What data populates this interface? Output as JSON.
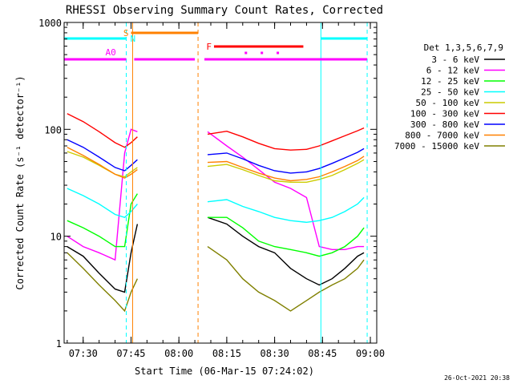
{
  "chart_data": {
    "type": "line",
    "title": "RHESSI Observing Summary Count Rates, Corrected",
    "xlabel": "Start Time (06-Mar-15 07:24:02)",
    "ylabel": "Corrected Count Rate (s⁻¹ detector⁻¹)",
    "y_scale": "log",
    "ylim": [
      1,
      1000
    ],
    "xlim": [
      "07:24:02",
      "09:02:00"
    ],
    "x_ticks": [
      "07:30",
      "07:45",
      "08:00",
      "08:15",
      "08:30",
      "08:45",
      "09:00"
    ],
    "y_ticks": [
      "1",
      "10",
      "100",
      "1000"
    ],
    "legend_header": "Det 1,3,5,6,7,9",
    "legend_position": "right",
    "grid": false,
    "series": [
      {
        "name": "3 - 6 keV",
        "color": "#000000",
        "x": [
          "07:25",
          "07:30",
          "07:35",
          "07:40",
          "07:43",
          "07:45",
          "07:47",
          "08:09",
          "08:15",
          "08:20",
          "08:25",
          "08:30",
          "08:35",
          "08:40",
          "08:44",
          "08:48",
          "08:52",
          "08:56",
          "08:58"
        ],
        "y": [
          8,
          6.5,
          4.5,
          3.2,
          3,
          7,
          13,
          15,
          13,
          10,
          8,
          7,
          5,
          4,
          3.5,
          4,
          5,
          6.5,
          7
        ]
      },
      {
        "name": "6 - 12 keV",
        "color": "#ff00ff",
        "x": [
          "07:25",
          "07:30",
          "07:35",
          "07:40",
          "07:43",
          "07:45",
          "07:47",
          "08:09",
          "08:15",
          "08:20",
          "08:25",
          "08:30",
          "08:35",
          "08:40",
          "08:44",
          "08:48",
          "08:52",
          "08:56",
          "08:58"
        ],
        "y": [
          10,
          8,
          7,
          6,
          60,
          100,
          95,
          95,
          70,
          55,
          42,
          32,
          28,
          23,
          8,
          7.5,
          7.5,
          8,
          8
        ]
      },
      {
        "name": "12 - 25 keV",
        "color": "#00ff00",
        "x": [
          "07:25",
          "07:30",
          "07:35",
          "07:40",
          "07:43",
          "07:45",
          "07:47",
          "08:09",
          "08:15",
          "08:20",
          "08:25",
          "08:30",
          "08:35",
          "08:40",
          "08:44",
          "08:48",
          "08:52",
          "08:56",
          "08:58"
        ],
        "y": [
          14,
          12,
          10,
          8,
          8,
          20,
          25,
          15,
          15,
          12,
          9,
          8,
          7.5,
          7,
          6.5,
          7,
          8,
          10,
          12
        ]
      },
      {
        "name": "25 - 50 keV",
        "color": "#00ffff",
        "x": [
          "07:25",
          "07:30",
          "07:35",
          "07:40",
          "07:43",
          "07:45",
          "07:47",
          "08:09",
          "08:15",
          "08:20",
          "08:25",
          "08:30",
          "08:35",
          "08:40",
          "08:44",
          "08:48",
          "08:52",
          "08:56",
          "08:58"
        ],
        "y": [
          28,
          24,
          20,
          16,
          15,
          17,
          20,
          21,
          22,
          19,
          17,
          15,
          14,
          13.5,
          14,
          15,
          17,
          20,
          23
        ]
      },
      {
        "name": "50 - 100 keV",
        "color": "#cccc00",
        "x": [
          "07:25",
          "07:30",
          "07:35",
          "07:40",
          "07:43",
          "07:45",
          "07:47",
          "08:09",
          "08:15",
          "08:20",
          "08:25",
          "08:30",
          "08:35",
          "08:40",
          "08:44",
          "08:48",
          "08:52",
          "08:56",
          "08:58"
        ],
        "y": [
          62,
          55,
          46,
          38,
          36,
          40,
          44,
          45,
          47,
          42,
          37,
          33,
          32,
          32,
          34,
          37,
          42,
          48,
          52
        ]
      },
      {
        "name": "100 - 300 keV",
        "color": "#ff0000",
        "x": [
          "07:25",
          "07:30",
          "07:35",
          "07:40",
          "07:43",
          "07:45",
          "07:47",
          "08:09",
          "08:15",
          "08:20",
          "08:25",
          "08:30",
          "08:35",
          "08:40",
          "08:44",
          "08:48",
          "08:52",
          "08:56",
          "08:58"
        ],
        "y": [
          140,
          118,
          95,
          75,
          68,
          75,
          85,
          90,
          96,
          85,
          74,
          66,
          64,
          65,
          70,
          78,
          87,
          97,
          103
        ]
      },
      {
        "name": "300 - 800 keV",
        "color": "#0000ff",
        "x": [
          "07:25",
          "07:30",
          "07:35",
          "07:40",
          "07:43",
          "07:45",
          "07:47",
          "08:09",
          "08:15",
          "08:20",
          "08:25",
          "08:30",
          "08:35",
          "08:40",
          "08:44",
          "08:48",
          "08:52",
          "08:56",
          "08:58"
        ],
        "y": [
          80,
          68,
          55,
          44,
          41,
          46,
          52,
          58,
          60,
          53,
          46,
          41,
          39,
          40,
          43,
          48,
          54,
          61,
          66
        ]
      },
      {
        "name": "800 - 7000 keV",
        "color": "#ff8000",
        "x": [
          "07:25",
          "07:30",
          "07:35",
          "07:40",
          "07:43",
          "07:45",
          "07:47",
          "08:09",
          "08:15",
          "08:20",
          "08:25",
          "08:30",
          "08:35",
          "08:40",
          "08:44",
          "08:48",
          "08:52",
          "08:56",
          "08:58"
        ],
        "y": [
          68,
          57,
          47,
          38,
          35,
          38,
          42,
          49,
          50,
          44,
          39,
          35,
          33,
          34,
          36,
          40,
          45,
          51,
          56
        ]
      },
      {
        "name": "7000 - 15000 keV",
        "color": "#808000",
        "x": [
          "07:25",
          "07:30",
          "07:35",
          "07:40",
          "07:43",
          "07:45",
          "07:47",
          "08:09",
          "08:15",
          "08:20",
          "08:25",
          "08:30",
          "08:35",
          "08:40",
          "08:44",
          "08:48",
          "08:52",
          "08:56",
          "08:58"
        ],
        "y": [
          7,
          5,
          3.5,
          2.5,
          2,
          3,
          4,
          8,
          6,
          4,
          3,
          2.5,
          2,
          2.5,
          3,
          3.5,
          4,
          5,
          6
        ]
      }
    ],
    "vertical_markers": [
      {
        "x": "07:43:30",
        "color": "#00ffff",
        "style": "dashed"
      },
      {
        "x": "07:45:30",
        "color": "#ff8000",
        "style": "solid"
      },
      {
        "x": "08:06:00",
        "color": "#ff8000",
        "style": "dashed"
      },
      {
        "x": "08:44:30",
        "color": "#00ffff",
        "style": "solid"
      },
      {
        "x": "08:59:00",
        "color": "#00ffff",
        "style": "dashed"
      }
    ],
    "state_bars": [
      {
        "label": "S",
        "color": "#ff8000",
        "level": 1,
        "x0": "07:45:00",
        "x1": "08:06:00",
        "label_side": "left"
      },
      {
        "label": "N",
        "color": "#00ffff",
        "level": 2,
        "x0": "07:24:02",
        "x1": "07:43:30",
        "label_side": "right"
      },
      {
        "label": "N",
        "color": "#00ffff",
        "level": 2,
        "x0": "08:44:30",
        "x1": "08:59:00",
        "label_side": "none"
      },
      {
        "label": "F",
        "color": "#ff0000",
        "level": 3,
        "x0": "08:11:00",
        "x1": "08:39:00",
        "label_side": "left"
      },
      {
        "label": "A0",
        "color": "#ff00ff",
        "level": 4,
        "x0": "07:24:02",
        "x1": "07:43:30",
        "label_side": "above"
      },
      {
        "label": "",
        "color": "#ff00ff",
        "level": 4,
        "x0": "07:46:00",
        "x1": "08:05:00",
        "label_side": "none"
      },
      {
        "label": "",
        "color": "#ff00ff",
        "level": 4,
        "x0": "08:08:00",
        "x1": "08:59:00",
        "label_side": "none"
      }
    ],
    "state_dots": {
      "color": "#ff00ff",
      "x": [
        "08:21:00",
        "08:26:00",
        "08:31:00"
      ]
    },
    "data_gaps": [
      [
        "07:48:00",
        "08:07:30"
      ]
    ]
  },
  "timestamp": "26-Oct-2021 20:38"
}
